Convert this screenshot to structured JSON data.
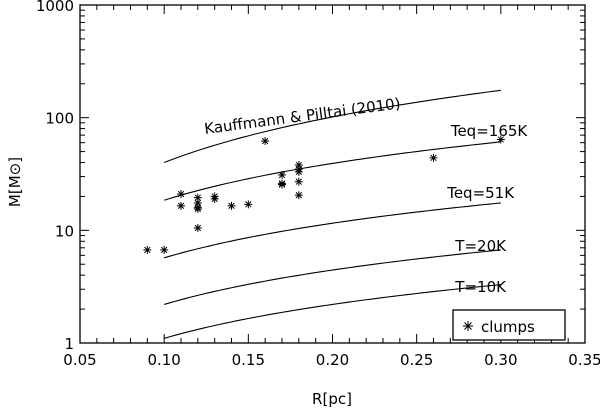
{
  "chart_data": {
    "type": "scatter",
    "title": "",
    "xlabel": "R[pc]",
    "ylabel": "M[M⊙]",
    "xlim": [
      0.05,
      0.35
    ],
    "ylim": [
      1,
      1000
    ],
    "yscale": "log",
    "xticks": [
      "0.05",
      "0.10",
      "0.15",
      "0.20",
      "0.25",
      "0.30",
      "0.35"
    ],
    "yticks": [
      "1",
      "10",
      "100",
      "1000"
    ],
    "grid": false,
    "legend": {
      "placement": "bottom-right",
      "entries": [
        "clumps"
      ]
    },
    "series": [
      {
        "name": "clumps",
        "marker": "asterisk",
        "points": [
          [
            0.09,
            6.7
          ],
          [
            0.1,
            6.7
          ],
          [
            0.11,
            21
          ],
          [
            0.11,
            16.5
          ],
          [
            0.12,
            19.5
          ],
          [
            0.12,
            17.5
          ],
          [
            0.12,
            16
          ],
          [
            0.12,
            15.5
          ],
          [
            0.12,
            10.5
          ],
          [
            0.13,
            20
          ],
          [
            0.13,
            19
          ],
          [
            0.14,
            16.5
          ],
          [
            0.15,
            17
          ],
          [
            0.16,
            62
          ],
          [
            0.17,
            31
          ],
          [
            0.17,
            26
          ],
          [
            0.17,
            25.5
          ],
          [
            0.18,
            38
          ],
          [
            0.18,
            35
          ],
          [
            0.18,
            33
          ],
          [
            0.18,
            27
          ],
          [
            0.18,
            20.5
          ],
          [
            0.26,
            44
          ],
          [
            0.3,
            64
          ]
        ]
      }
    ],
    "curves": [
      {
        "label": "Kauffmann & Pilltai (2010)",
        "x": [
          0.1,
          0.3
        ],
        "y": [
          40,
          175
        ]
      },
      {
        "label": "Teq=165K",
        "x": [
          0.1,
          0.3
        ],
        "y": [
          18.5,
          61
        ]
      },
      {
        "label": "Teq=51K",
        "x": [
          0.1,
          0.3
        ],
        "y": [
          5.7,
          17.5
        ]
      },
      {
        "label": "T=20K",
        "x": [
          0.1,
          0.3
        ],
        "y": [
          2.2,
          6.7
        ]
      },
      {
        "label": "T=10K",
        "x": [
          0.1,
          0.3
        ],
        "y": [
          1.1,
          3.3
        ]
      }
    ]
  }
}
